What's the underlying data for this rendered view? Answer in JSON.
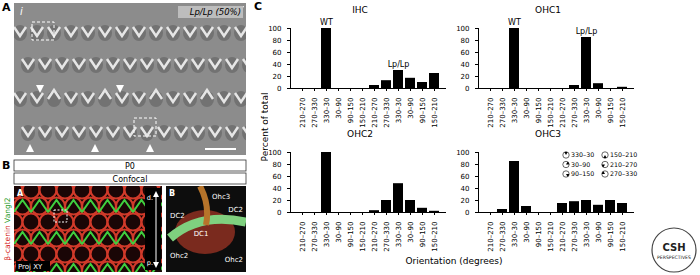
{
  "figure": {
    "panel_a": {
      "letter": "A",
      "labels": [
        "i",
        "Lp/Lp (50%)"
      ]
    },
    "panel_b": {
      "letter": "B",
      "rows": [
        "P0",
        "Confocal"
      ],
      "side_label": [
        "β-catenin",
        "Vangl2"
      ],
      "image_a": {
        "letter": "A",
        "labels": [
          "Proj XY",
          "d.",
          "p."
        ]
      },
      "image_b": {
        "letter": "B",
        "labels": [
          "Ohc3",
          "DC2",
          "DC2",
          "DC1",
          "Ohc2",
          "Ohc2"
        ]
      }
    },
    "panel_c": {
      "letter": "C",
      "y_label": "Percent of total",
      "x_label": "Orientation (degrees)",
      "orientation_key": [
        "330–30",
        "30–90",
        "90–150",
        "150–210",
        "210–270",
        "270–330"
      ]
    },
    "logo": [
      "CSH",
      "PERSPECTIVES"
    ]
  },
  "chart_data": [
    {
      "type": "bar",
      "title": "IHC",
      "categories": [
        "210–270",
        "270–330",
        "330–30",
        "30–90",
        "90–150",
        "150–210",
        "210–270",
        "270–330",
        "330–30",
        "30–90",
        "90–150",
        "150–210"
      ],
      "series": [
        {
          "name": "WT",
          "color": "#000000",
          "values": [
            0,
            0,
            100,
            0,
            0,
            0,
            null,
            null,
            null,
            null,
            null,
            null
          ]
        },
        {
          "name": "Lp/Lp",
          "color": "#000000",
          "values": [
            null,
            null,
            null,
            null,
            null,
            null,
            5,
            13,
            30,
            17,
            10,
            25
          ]
        }
      ],
      "ylim": [
        0,
        100
      ],
      "yticks": [
        0,
        20,
        40,
        60,
        80,
        100
      ]
    },
    {
      "type": "bar",
      "title": "OHC1",
      "categories": [
        "210–270",
        "270–330",
        "330–30",
        "30–90",
        "90–150",
        "150–210",
        "210–270",
        "270–330",
        "330–30",
        "30–90",
        "90–150",
        "150–210"
      ],
      "series": [
        {
          "name": "WT",
          "color": "#000000",
          "values": [
            0,
            0,
            100,
            0,
            0,
            0,
            null,
            null,
            null,
            null,
            null,
            null
          ]
        },
        {
          "name": "Lp/Lp",
          "color": "#000000",
          "values": [
            null,
            null,
            null,
            null,
            null,
            null,
            0,
            5,
            85,
            8,
            0,
            2
          ]
        }
      ],
      "ylim": [
        0,
        100
      ],
      "yticks": [
        0,
        20,
        40,
        60,
        80,
        100
      ]
    },
    {
      "type": "bar",
      "title": "OHC2",
      "categories": [
        "210–270",
        "270–330",
        "330–30",
        "30–90",
        "90–150",
        "150–210",
        "210–270",
        "270–330",
        "330–30",
        "30–90",
        "90–150",
        "150–210"
      ],
      "series": [
        {
          "color": "#000000",
          "values": [
            0,
            0,
            100,
            0,
            0,
            0,
            null,
            null,
            null,
            null,
            null,
            null
          ]
        },
        {
          "color": "#000000",
          "values": [
            null,
            null,
            null,
            null,
            null,
            null,
            3,
            20,
            48,
            20,
            7,
            2
          ]
        }
      ],
      "ylim": [
        0,
        100
      ],
      "yticks": [
        0,
        20,
        40,
        60,
        80,
        100
      ]
    },
    {
      "type": "bar",
      "title": "OHC3",
      "categories": [
        "210–270",
        "270–330",
        "330–30",
        "30–90",
        "90–150",
        "150–210",
        "210–270",
        "270–330",
        "330–30",
        "30–90",
        "90–150",
        "150–210"
      ],
      "series": [
        {
          "color": "#000000",
          "values": [
            0,
            5,
            85,
            10,
            0,
            0,
            null,
            null,
            null,
            null,
            null,
            null
          ]
        },
        {
          "color": "#000000",
          "values": [
            null,
            null,
            null,
            null,
            null,
            null,
            15,
            18,
            20,
            12,
            20,
            15
          ]
        }
      ],
      "ylim": [
        0,
        100
      ],
      "yticks": [
        0,
        20,
        40,
        60,
        80,
        100
      ]
    }
  ]
}
